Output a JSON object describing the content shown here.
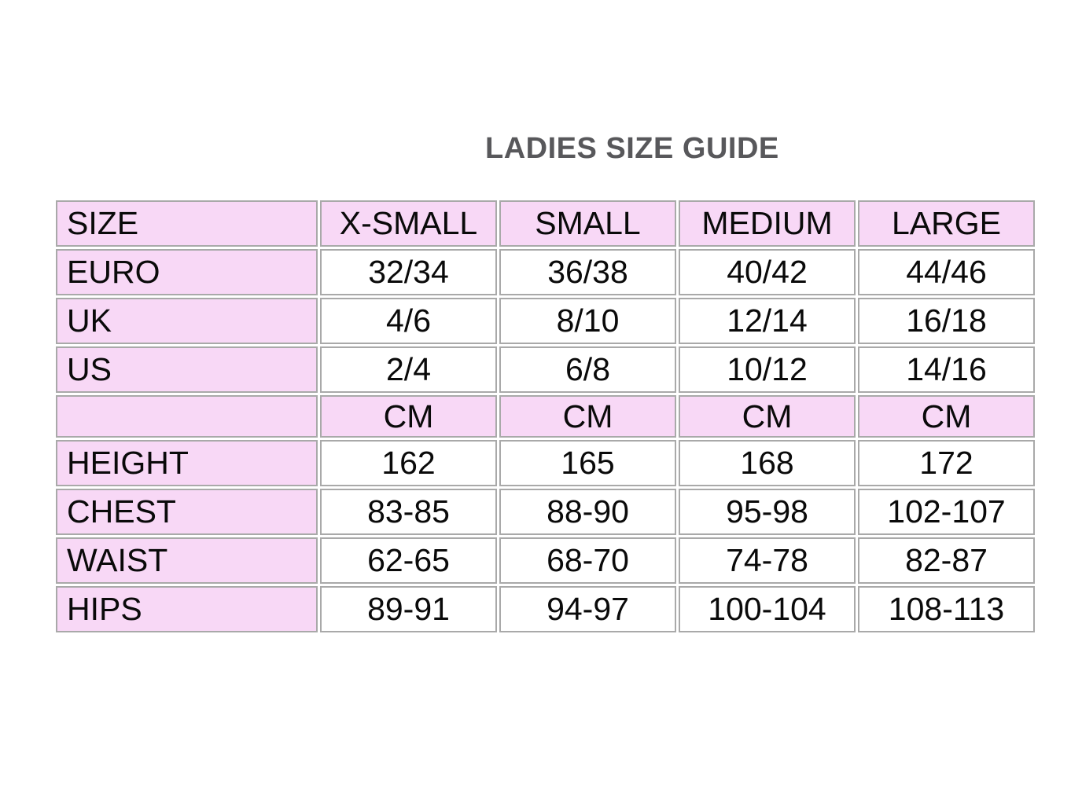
{
  "title": "LADIES SIZE GUIDE",
  "colors": {
    "row_highlight": "#f8d8f6",
    "grid_border": "#a9a9a9",
    "title_text": "#58585b",
    "cell_text": "#0a0a0a",
    "background": "#ffffff"
  },
  "table": {
    "columns": [
      "SIZE",
      "X-SMALL",
      "SMALL",
      "MEDIUM",
      "LARGE"
    ],
    "rows": [
      {
        "cells": [
          "EURO",
          "32/34",
          "36/38",
          "40/42",
          "44/46"
        ]
      },
      {
        "cells": [
          "UK",
          "4/6",
          "8/10",
          "12/14",
          "16/18"
        ]
      },
      {
        "cells": [
          "US",
          "2/4",
          "6/8",
          "10/12",
          "14/16"
        ]
      },
      {
        "cells": [
          "",
          "CM",
          "CM",
          "CM",
          "CM"
        ],
        "highlight": true
      },
      {
        "cells": [
          "HEIGHT",
          "162",
          "165",
          "168",
          "172"
        ]
      },
      {
        "cells": [
          "CHEST",
          "83-85",
          "88-90",
          "95-98",
          "102-107"
        ]
      },
      {
        "cells": [
          "WAIST",
          "62-65",
          "68-70",
          "74-78",
          "82-87"
        ]
      },
      {
        "cells": [
          "HIPS",
          "89-91",
          "94-97",
          "100-104",
          "108-113"
        ]
      }
    ]
  }
}
